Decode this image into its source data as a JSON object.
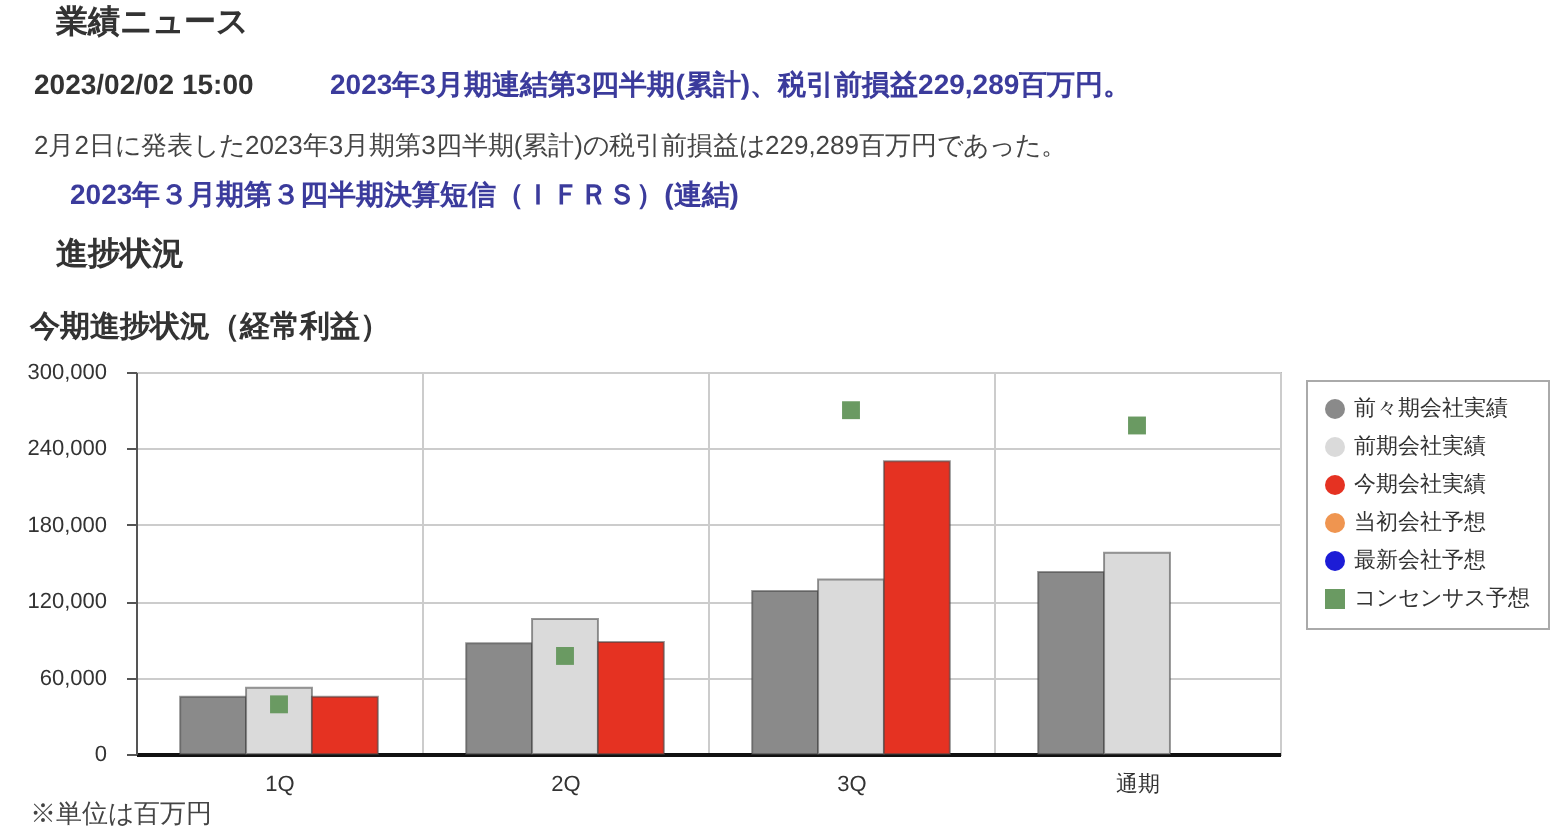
{
  "chart_data": {
    "type": "bar",
    "title": "今期進捗状況（経常利益）",
    "categories": [
      "1Q",
      "2Q",
      "3Q",
      "通期"
    ],
    "series": [
      {
        "name": "前々期会社実績",
        "color": "#8a8a8a",
        "values": [
          45000,
          87000,
          128000,
          143000
        ]
      },
      {
        "name": "前期会社実績",
        "color": "#dadada",
        "values": [
          52000,
          106000,
          137000,
          158000
        ]
      },
      {
        "name": "今期会社実績",
        "color": "#e53222",
        "values": [
          45000,
          88000,
          230000,
          null
        ]
      },
      {
        "name": "当初会社予想",
        "type": "scatter",
        "marker": "circle",
        "color": "#ef9550",
        "values": [
          null,
          null,
          null,
          null
        ]
      },
      {
        "name": "最新会社予想",
        "type": "scatter",
        "marker": "circle",
        "color": "#1c1cd6",
        "values": [
          null,
          null,
          null,
          null
        ]
      },
      {
        "name": "コンセンサス予想",
        "type": "scatter",
        "marker": "square",
        "color": "#6a9a62",
        "x": [
          "1Q",
          "2Q",
          "3Q",
          "通期"
        ],
        "values": [
          39000,
          77000,
          270000,
          258000
        ]
      }
    ],
    "ylim": [
      0,
      300000
    ],
    "yticks": [
      0,
      {
        "value": 60000,
        "label": "60,000"
      },
      {
        "value": 120000,
        "label": "120,000"
      },
      {
        "value": 180000,
        "label": "180,000"
      },
      {
        "value": 240000,
        "label": "240,000"
      },
      {
        "value": 300000,
        "label": "300,000"
      }
    ],
    "grid": true,
    "legend": "right",
    "annotations": [
      "業績ニュース",
      "2023/02/02 15:00",
      "2023年3月期連結第3四半期(累計)、税引前損益229,289百万円。",
      "2月2日に発表した2023年3月期第3四半期(累計)の税引前損益は229,289百万円であった。",
      "2023年３月期第３四半期決算短信（ＩＦＲＳ）(連結)",
      "進捗状況",
      "※単位は百万円"
    ]
  }
}
